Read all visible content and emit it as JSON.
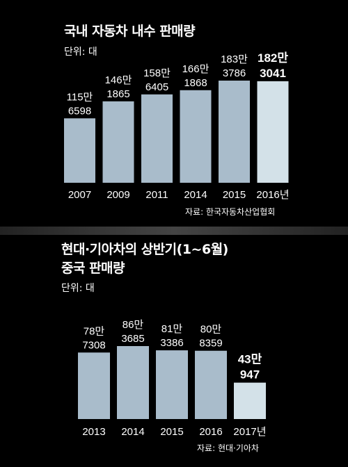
{
  "chart1": {
    "title": "국내 자동차 내수 판매량",
    "unit": "단위: 대",
    "source": "자료: 한국자동차산업협회",
    "chart_data": {
      "type": "bar",
      "categories": [
        "2007",
        "2009",
        "2011",
        "2014",
        "2015",
        "2016년"
      ],
      "values": [
        1156598,
        1461865,
        1586405,
        1661868,
        1833786,
        1823041
      ],
      "value_labels": [
        [
          "115만",
          "6598"
        ],
        [
          "146만",
          "1865"
        ],
        [
          "158만",
          "6405"
        ],
        [
          "166만",
          "1868"
        ],
        [
          "183만",
          "3786"
        ],
        [
          "182만",
          "3041"
        ]
      ],
      "highlight_index": 5,
      "colors": {
        "bar": "#a9bccb",
        "highlight": "#d3e1e8"
      }
    }
  },
  "chart2": {
    "title_line1": "현대·기아차의 상반기(1~6월)",
    "title_line2": "중국 판매량",
    "unit": "단위: 대",
    "source": "자료: 현대·기아차",
    "chart_data": {
      "type": "bar",
      "categories": [
        "2013",
        "2014",
        "2015",
        "2016",
        "2017년"
      ],
      "values": [
        787308,
        863685,
        813386,
        808359,
        430947
      ],
      "value_labels": [
        [
          "78만",
          "7308"
        ],
        [
          "86만",
          "3685"
        ],
        [
          "81만",
          "3386"
        ],
        [
          "80만",
          "8359"
        ],
        [
          "43만",
          "947"
        ]
      ],
      "highlight_index": 4,
      "colors": {
        "bar": "#a9bccb",
        "highlight": "#d3e1e8"
      }
    }
  }
}
